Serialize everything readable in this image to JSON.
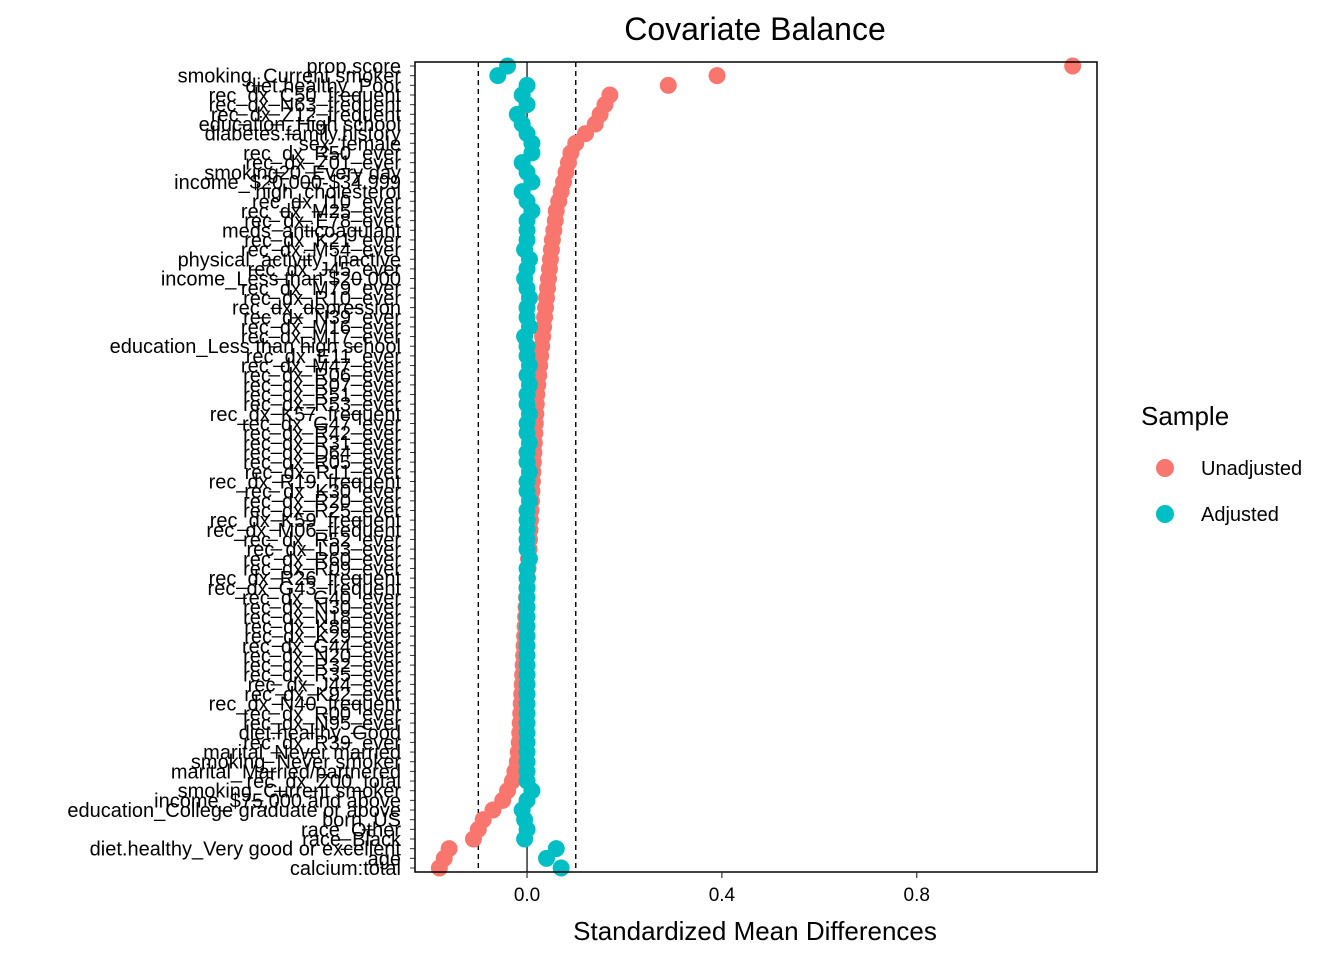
{
  "chart_data": {
    "type": "scatter",
    "title": "Covariate Balance",
    "xlabel": "Standardized Mean Differences",
    "ylabel": "",
    "xlim": [
      -0.23,
      1.17
    ],
    "x_ticks": [
      0.0,
      0.4,
      0.8
    ],
    "x_tick_labels": [
      "0.0",
      "0.4",
      "0.8"
    ],
    "reference_lines": [
      -0.1,
      0.0,
      0.1
    ],
    "grid": false,
    "legend_position": "right",
    "legend_title": "Sample",
    "series": [
      {
        "name": "Unadjusted",
        "color": "#F8766D"
      },
      {
        "name": "Adjusted",
        "color": "#00BFC4"
      }
    ],
    "covariates": [
      "prop.score",
      "smoking_Current smoker",
      "diet.healthy_Poor",
      "rec_dx_C50_frequent",
      "rec_dx_N63_frequent",
      "rec_dx_Z12_frequent",
      "education_High school",
      "diabetes.family.history",
      "sex_female",
      "rec_dx_R50_ever",
      "rec_dx_Z01_ever",
      "smoking20_Every day",
      "income_$20,000-$34,999",
      "high_cholesterol",
      "rec_dx_I10_ever",
      "rec_dx_M25_ever",
      "rec_dx_E78_ever",
      "meds_anticoagulant",
      "rec_dx_K21_ever",
      "rec_dx_M54_ever",
      "physical_activity_inactive",
      "rec_dx_J45_ever",
      "income_Less than $20,000",
      "rec_dx_M79_ever",
      "rec_dx_R10_ever",
      "rec_dx_depression",
      "rec_dx_N39_ever",
      "rec_dx_M16_ever",
      "rec_dx_M17_ever",
      "education_Less than high school",
      "rec_dx_E11_ever",
      "rec_dx_M47_ever",
      "rec_dx_R06_ever",
      "rec_dx_R07_ever",
      "rec_dx_R51_ever",
      "rec_dx_R53_ever",
      "rec_dx_K57_frequent",
      "rec_dx_G47_ever",
      "rec_dx_R42_ever",
      "rec_dx_R31_ever",
      "rec_dx_D64_ever",
      "rec_dx_R05_ever",
      "rec_dx_R11_ever",
      "rec_dx_R19_frequent",
      "rec_dx_K30_ever",
      "rec_dx_R20_ever",
      "rec_dx_R25_ever",
      "rec_dx_K59_frequent",
      "rec_dx_M06_frequent",
      "rec_dx_R52_ever",
      "rec_dx_L03_ever",
      "rec_dx_R60_ever",
      "rec_dx_R09_ever",
      "rec_dx_R26_frequent",
      "rec_dx_G43_frequent",
      "rec_dx_G40_ever",
      "rec_dx_N30_ever",
      "rec_dx_N18_ever",
      "rec_dx_K80_ever",
      "rec_dx_K29_ever",
      "rec_dx_G44_ever",
      "rec_dx_N20_ever",
      "rec_dx_R32_ever",
      "rec_dx_R35_ever",
      "rec_dx_J44_ever",
      "rec_dx_K92_ever",
      "rec_dx_N40_frequent",
      "rec_dx_R00_ever",
      "rec_dx_N95_ever",
      "diet.healthy_Good",
      "rec_dx_R39_ever",
      "marital_Never married",
      "smoking_Never smoker",
      "marital_Married/partnered",
      "rec_dx_Z00_total",
      "smoking_Current smoker",
      "income_$75,000 and above",
      "education_College graduate or above",
      "born_US",
      "race_Other",
      "race_Black",
      "diet.healthy_Very good or excellent",
      "age",
      "calcium:total"
    ],
    "unadjusted_smd": [
      1.12,
      0.39,
      0.29,
      0.17,
      0.16,
      0.15,
      0.14,
      0.12,
      0.1,
      0.09,
      0.085,
      0.08,
      0.075,
      0.07,
      0.065,
      0.06,
      0.058,
      0.055,
      0.052,
      0.05,
      0.048,
      0.046,
      0.044,
      0.042,
      0.04,
      0.038,
      0.036,
      0.034,
      0.032,
      0.03,
      0.028,
      0.026,
      0.024,
      0.022,
      0.02,
      0.019,
      0.018,
      0.017,
      0.016,
      0.015,
      0.014,
      0.013,
      0.012,
      0.011,
      0.01,
      0.009,
      0.008,
      0.007,
      0.006,
      0.005,
      0.004,
      0.003,
      0.002,
      0.001,
      0.0,
      -0.001,
      -0.002,
      -0.003,
      -0.004,
      -0.005,
      -0.006,
      -0.007,
      -0.008,
      -0.009,
      -0.01,
      -0.011,
      -0.012,
      -0.013,
      -0.014,
      -0.015,
      -0.016,
      -0.018,
      -0.02,
      -0.025,
      -0.03,
      -0.04,
      -0.05,
      -0.07,
      -0.09,
      -0.1,
      -0.11,
      -0.16,
      -0.17,
      -0.18
    ],
    "adjusted_smd": [
      -0.04,
      -0.06,
      0.0,
      -0.01,
      0.0,
      -0.02,
      -0.01,
      0.0,
      0.01,
      0.01,
      -0.01,
      0.0,
      0.01,
      -0.01,
      0.0,
      0.01,
      0.0,
      0.0,
      0.0,
      -0.005,
      0.005,
      0.0,
      -0.005,
      0.0,
      0.005,
      0.0,
      0.0,
      0.005,
      -0.005,
      0.0,
      0.0,
      0.005,
      0.0,
      0.005,
      0.0,
      0.0,
      0.005,
      0.0,
      0.0,
      0.005,
      0.0,
      0.0,
      0.005,
      0.0,
      0.0,
      0.005,
      0.0,
      0.0,
      0.0,
      0.0,
      0.0,
      0.005,
      0.0,
      0.0,
      0.0,
      0.0,
      0.0,
      0.0,
      0.0,
      0.0,
      0.0,
      0.0,
      0.0,
      0.0,
      0.0,
      0.0,
      0.0,
      0.0,
      0.0,
      0.0,
      0.0,
      0.0,
      0.0,
      0.0,
      0.0,
      0.01,
      0.0,
      -0.01,
      -0.005,
      0.0,
      -0.005,
      0.06,
      0.04,
      0.07
    ]
  }
}
